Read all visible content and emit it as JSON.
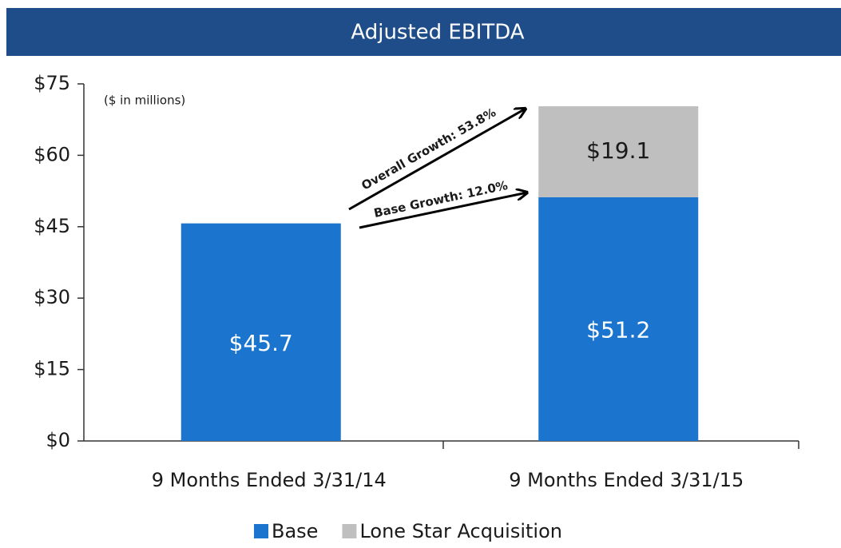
{
  "chart_data": {
    "type": "stacked_bar",
    "title": "Adjusted EBITDA",
    "annotations": [
      "($ in millions)",
      "Overall Growth: 53.8%",
      "Base Growth: 12.0%"
    ],
    "categories": [
      "9 Months Ended 3/31/14",
      "9 Months Ended 3/31/15"
    ],
    "series": [
      {
        "name": "Base",
        "color": "#1b75cf",
        "values": [
          45.7,
          51.2
        ],
        "value_labels": [
          "$45.7",
          "$51.2"
        ]
      },
      {
        "name": "Lone Star Acquisition",
        "color": "#bfbfbf",
        "values": [
          null,
          19.1
        ],
        "value_labels": [
          null,
          "$19.1"
        ]
      }
    ],
    "ylim": [
      0,
      75
    ],
    "yticks": [
      {
        "value": 0,
        "label": "$0"
      },
      {
        "value": 15,
        "label": "$15"
      },
      {
        "value": 30,
        "label": "$30"
      },
      {
        "value": 45,
        "label": "$45"
      },
      {
        "value": 60,
        "label": "$60"
      },
      {
        "value": 75,
        "label": "$75"
      }
    ],
    "legend": "bottom"
  }
}
